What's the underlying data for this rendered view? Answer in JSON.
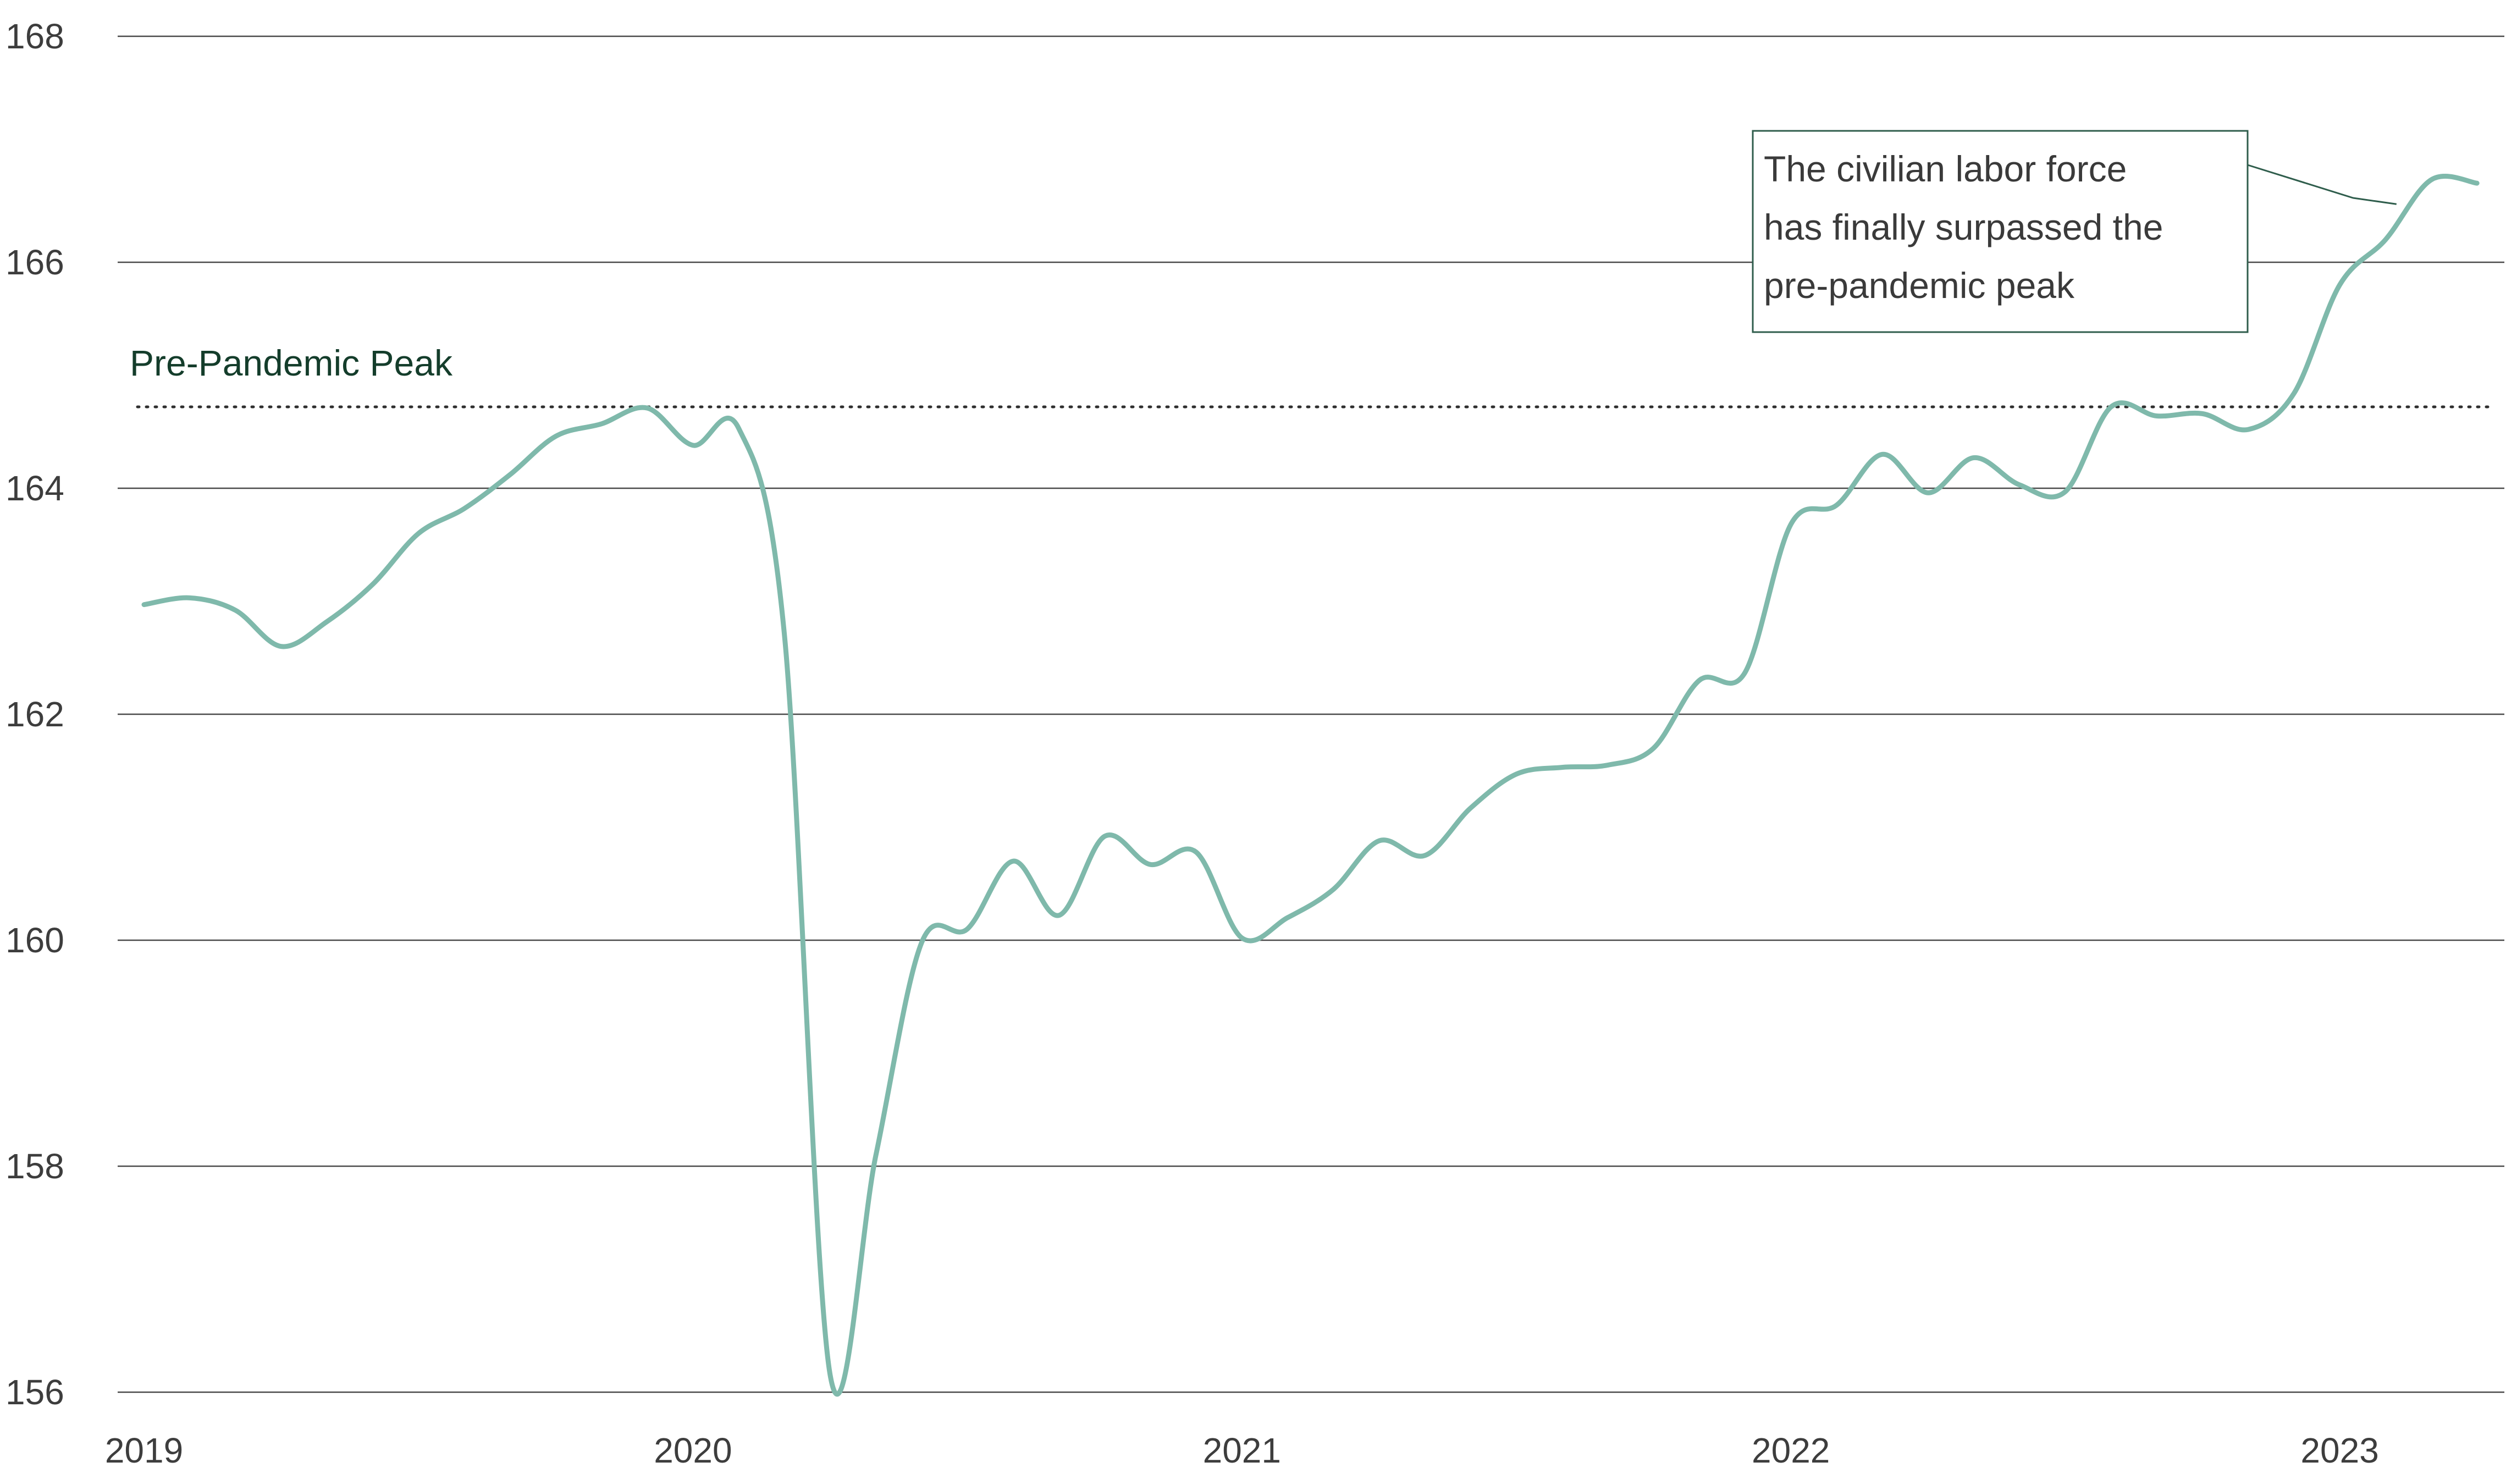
{
  "chart_data": {
    "type": "line",
    "title": "",
    "xlabel": "",
    "ylabel": "",
    "ylim": [
      156,
      168
    ],
    "yticks": [
      156,
      158,
      160,
      162,
      164,
      166,
      168
    ],
    "xticks": [
      "2019",
      "2020",
      "2021",
      "2022",
      "2023"
    ],
    "grid": "horizontal",
    "line_color": "#7fb9ab",
    "series": [
      {
        "x": [
          "2019-01",
          "2019-02",
          "2019-03",
          "2019-04",
          "2019-05",
          "2019-06",
          "2019-07",
          "2019-08",
          "2019-09",
          "2019-10",
          "2019-11",
          "2019-12",
          "2020-01",
          "2020-02",
          "2020-03",
          "2020-04",
          "2020-05",
          "2020-06",
          "2020-07",
          "2020-08",
          "2020-09",
          "2020-10",
          "2020-11",
          "2020-12",
          "2021-01",
          "2021-02",
          "2021-03",
          "2021-04",
          "2021-05",
          "2021-06",
          "2021-07",
          "2021-08",
          "2021-09",
          "2021-10",
          "2021-11",
          "2021-12",
          "2022-01",
          "2022-02",
          "2022-03",
          "2022-04",
          "2022-05",
          "2022-06",
          "2022-07",
          "2022-08",
          "2022-09",
          "2022-10",
          "2022-11",
          "2022-12",
          "2023-01",
          "2023-02",
          "2023-03",
          "2023-04"
        ],
        "values": [
          162.97,
          163.03,
          162.92,
          162.6,
          162.82,
          163.15,
          163.6,
          163.82,
          164.12,
          164.46,
          164.57,
          164.71,
          164.38,
          164.53,
          162.7,
          156.15,
          158.1,
          159.98,
          160.1,
          160.7,
          160.22,
          160.92,
          160.67,
          160.78,
          160.02,
          160.2,
          160.45,
          160.88,
          160.75,
          161.17,
          161.47,
          161.53,
          161.55,
          161.7,
          162.3,
          162.37,
          163.68,
          163.85,
          164.3,
          163.96,
          164.27,
          164.03,
          163.97,
          164.72,
          164.64,
          164.66,
          164.52,
          164.84,
          165.8,
          166.2,
          166.73,
          166.7
        ]
      }
    ],
    "reference_line": {
      "value": 164.72,
      "label": "Pre-Pandemic Peak",
      "style": "dotted"
    },
    "annotation": {
      "lines": [
        "The civilian labor force",
        "has finally surpassed the",
        "pre-pandemic peak"
      ],
      "target": {
        "x": "2023-02",
        "value": 166.31
      },
      "placement": "top-right"
    }
  }
}
